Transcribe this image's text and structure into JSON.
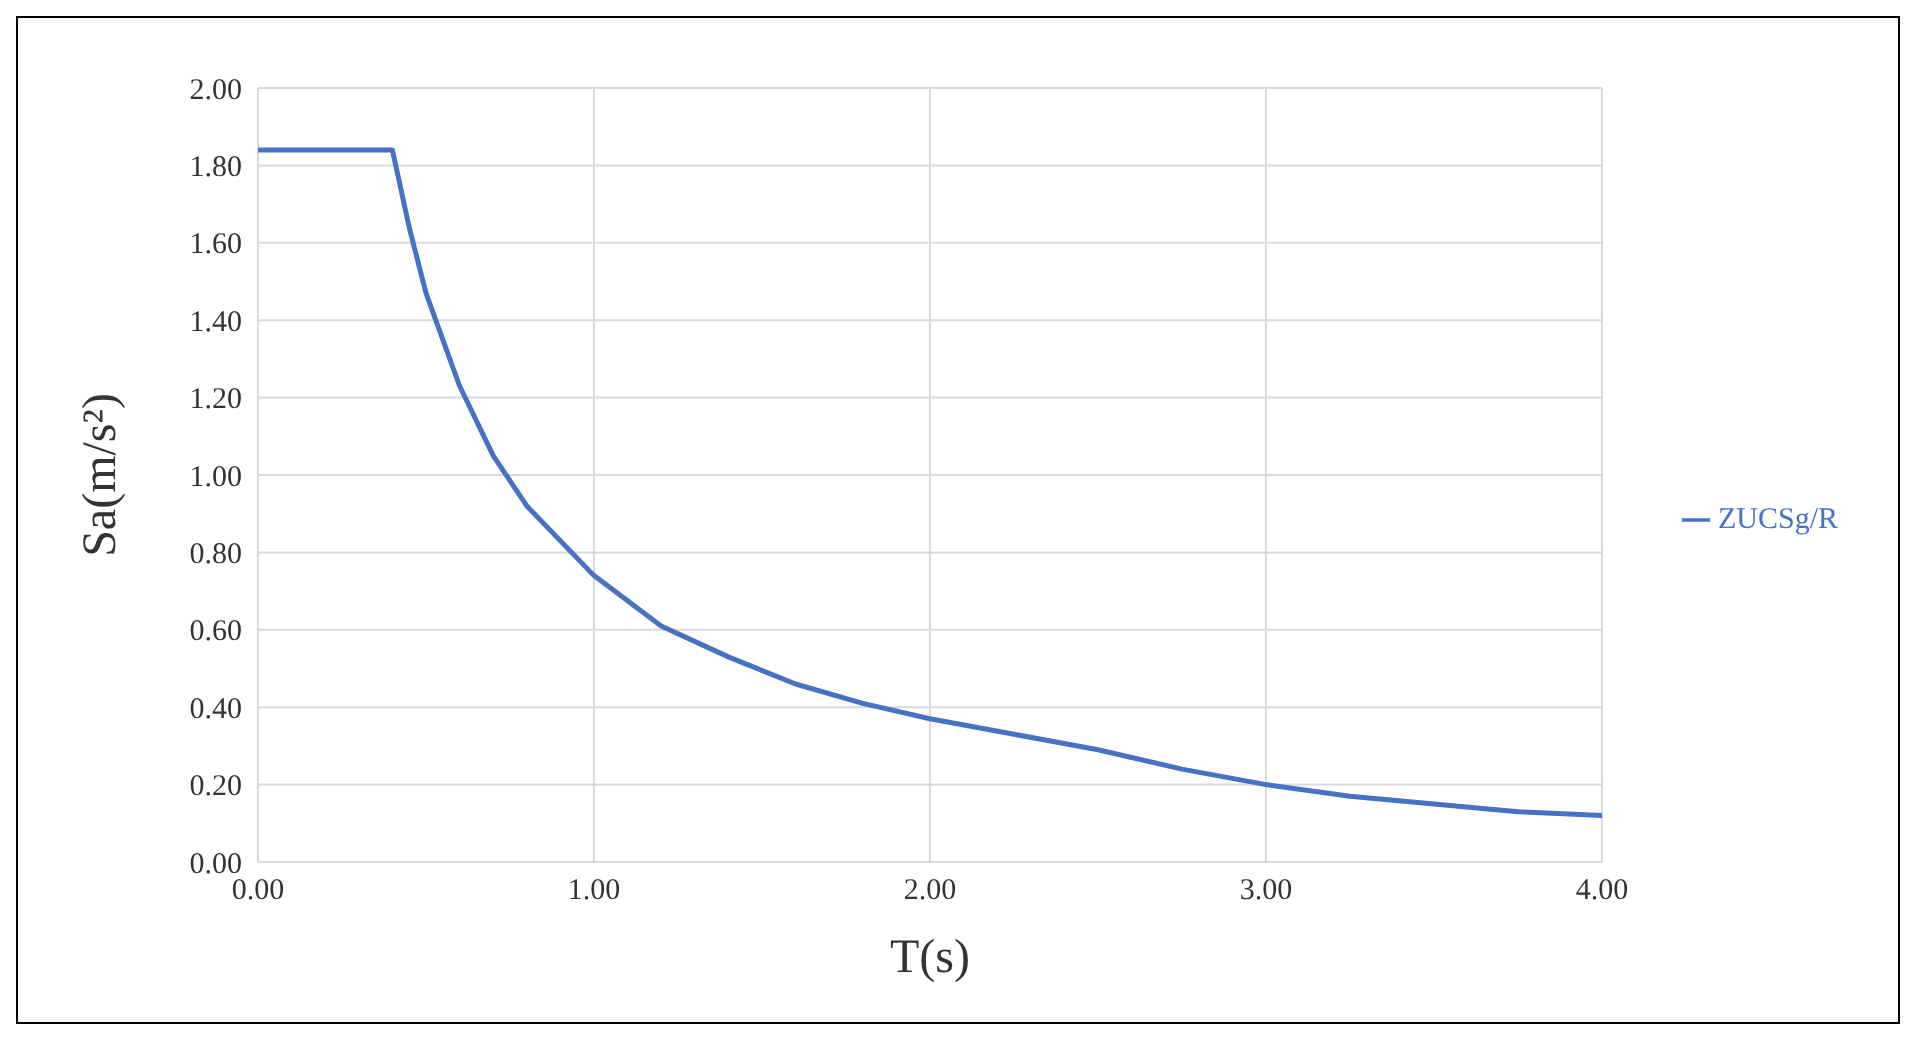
{
  "chart_data": {
    "type": "line",
    "xlabel": "T(s)",
    "ylabel": "Sa(m/s²)",
    "xlim": [
      0,
      4
    ],
    "xticks": [
      {
        "value": 0,
        "label": "0.00"
      },
      {
        "value": 1,
        "label": "1.00"
      },
      {
        "value": 2,
        "label": "2.00"
      },
      {
        "value": 3,
        "label": "3.00"
      },
      {
        "value": 4,
        "label": "4.00"
      }
    ],
    "ylim": [
      0,
      2
    ],
    "yticks": [
      {
        "value": 0,
        "label": "0.00"
      },
      {
        "value": 0.2,
        "label": "0.20"
      },
      {
        "value": 0.4,
        "label": "0.40"
      },
      {
        "value": 0.6,
        "label": "0.60"
      },
      {
        "value": 0.8,
        "label": "0.80"
      },
      {
        "value": 1,
        "label": "1.00"
      },
      {
        "value": 1.2,
        "label": "1.20"
      },
      {
        "value": 1.4,
        "label": "1.40"
      },
      {
        "value": 1.6,
        "label": "1.60"
      },
      {
        "value": 1.8,
        "label": "1.80"
      },
      {
        "value": 2,
        "label": "2.00"
      }
    ],
    "x": [
      0,
      0.4,
      0.45,
      0.5,
      0.6,
      0.7,
      0.8,
      1.0,
      1.2,
      1.4,
      1.6,
      1.8,
      2.0,
      2.25,
      2.5,
      2.75,
      3.0,
      3.25,
      3.5,
      3.75,
      4.0
    ],
    "series": [
      {
        "name": "ZUCSg/R",
        "color": "#4472c4",
        "values": [
          1.84,
          1.84,
          1.64,
          1.47,
          1.23,
          1.05,
          0.92,
          0.74,
          0.61,
          0.53,
          0.46,
          0.41,
          0.37,
          0.33,
          0.29,
          0.24,
          0.2,
          0.17,
          0.15,
          0.13,
          0.12
        ]
      }
    ],
    "grid": true,
    "legend": "right"
  }
}
